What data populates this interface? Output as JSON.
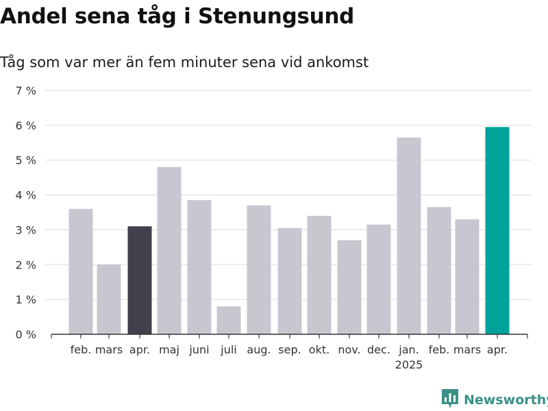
{
  "title": "Andel sena tåg i Stenungsund",
  "subtitle": "Tåg som var mer än fem minuter sena vid ankomst",
  "brand": {
    "name": "Newsworthy",
    "icon": "bar-chart-logo-icon",
    "color": "#3a8f86"
  },
  "chart_data": {
    "type": "bar",
    "title": "Andel sena tåg i Stenungsund",
    "subtitle": "Tåg som var mer än fem minuter sena vid ankomst",
    "categories": [
      "feb.",
      "mars",
      "apr.",
      "maj",
      "juni",
      "juli",
      "aug.",
      "sep.",
      "okt.",
      "nov.",
      "dec.",
      "jan.",
      "feb.",
      "mars",
      "apr."
    ],
    "year_label": {
      "category_index": 11,
      "text": "2025"
    },
    "values": [
      3.6,
      2.0,
      3.1,
      4.8,
      3.85,
      0.8,
      3.7,
      3.05,
      3.4,
      2.7,
      3.15,
      5.65,
      3.65,
      3.3,
      5.95
    ],
    "ylim": [
      0,
      7
    ],
    "yticks": [
      0,
      1,
      2,
      3,
      4,
      5,
      6,
      7
    ],
    "ytick_labels": [
      "0 %",
      "1 %",
      "2 %",
      "3 %",
      "4 %",
      "5 %",
      "6 %",
      "7 %"
    ],
    "xlabel": "",
    "ylabel": "",
    "grid": true,
    "colors": {
      "default": "#c8c7d0",
      "highlight_earlier": "#41404c",
      "highlight_latest": "#00a39a",
      "grid": "#dddddd",
      "axis": "#333333"
    },
    "highlights": {
      "2": "highlight_earlier",
      "14": "highlight_latest"
    }
  }
}
